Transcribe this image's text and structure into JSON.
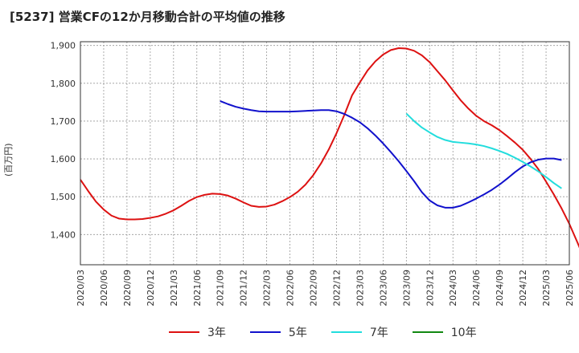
{
  "title": "[5237]  営業CFの12か月移動合計の平均値の推移",
  "unit_label": "(百万円)",
  "chart_data": {
    "type": "line",
    "title": "[5237]  営業CFの12か月移動合計の平均値の推移",
    "ylabel": "(百万円)",
    "ylim": [
      1320,
      1910
    ],
    "yticks": [
      1400,
      1500,
      1600,
      1700,
      1800,
      1900
    ],
    "ytick_labels": [
      "1,400",
      "1,500",
      "1,600",
      "1,700",
      "1,800",
      "1,900"
    ],
    "x_labels": [
      "2020/03",
      "2020/06",
      "2020/09",
      "2020/12",
      "2021/03",
      "2021/06",
      "2021/09",
      "2021/12",
      "2022/03",
      "2022/06",
      "2022/09",
      "2022/12",
      "2023/03",
      "2023/06",
      "2023/09",
      "2023/12",
      "2024/03",
      "2024/06",
      "2024/09",
      "2024/12",
      "2025/03",
      "2025/06"
    ],
    "grid": true,
    "legend_position": "bottom",
    "series": [
      {
        "name": "3年",
        "color": "#dd1111",
        "start_month": 0,
        "values": [
          1545,
          1515,
          1487,
          1466,
          1450,
          1442,
          1440,
          1440,
          1441,
          1444,
          1448,
          1455,
          1464,
          1476,
          1489,
          1499,
          1505,
          1508,
          1507,
          1503,
          1495,
          1485,
          1476,
          1473,
          1474,
          1479,
          1488,
          1499,
          1513,
          1532,
          1557,
          1588,
          1625,
          1668,
          1716,
          1768,
          1802,
          1834,
          1858,
          1876,
          1888,
          1893,
          1892,
          1886,
          1874,
          1856,
          1832,
          1808,
          1781,
          1755,
          1733,
          1714,
          1700,
          1689,
          1676,
          1660,
          1643,
          1624,
          1600,
          1573,
          1540,
          1506,
          1469,
          1428,
          1381,
          1333
        ]
      },
      {
        "name": "5年",
        "color": "#1111cc",
        "start_month": 18,
        "values": [
          1753,
          1745,
          1738,
          1733,
          1729,
          1726,
          1725,
          1725,
          1725,
          1725,
          1726,
          1727,
          1728,
          1729,
          1729,
          1726,
          1719,
          1709,
          1697,
          1681,
          1662,
          1641,
          1618,
          1594,
          1568,
          1541,
          1512,
          1490,
          1477,
          1471,
          1471,
          1476,
          1485,
          1495,
          1506,
          1518,
          1532,
          1548,
          1565,
          1580,
          1591,
          1598,
          1601,
          1601,
          1597
        ]
      },
      {
        "name": "7年",
        "color": "#22dddd",
        "start_month": 42,
        "values": [
          1720,
          1700,
          1683,
          1670,
          1658,
          1650,
          1645,
          1643,
          1641,
          1638,
          1634,
          1628,
          1621,
          1613,
          1603,
          1592,
          1580,
          1567,
          1552,
          1536,
          1522
        ]
      },
      {
        "name": "10年",
        "color": "#118811",
        "start_month": 0,
        "values": []
      }
    ]
  }
}
